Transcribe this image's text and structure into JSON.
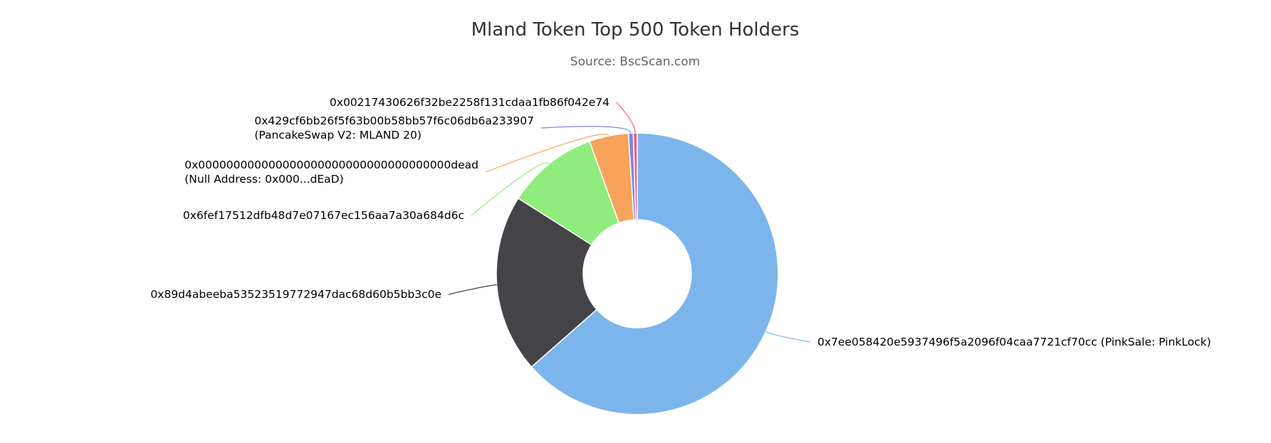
{
  "chart_data": {
    "type": "pie",
    "variant": "donut",
    "title": "Mland Token Top 500 Token Holders",
    "subtitle": "Source: BscScan.com",
    "legend": "none",
    "slices": [
      {
        "label": [
          "0x7ee058420e5937496f5a2096f04caa7721cf70cc (PinkSale: PinkLock)"
        ],
        "value": 63.5,
        "color": "#7cb5ec"
      },
      {
        "label": [
          "0x89d4abeeba53523519772947dac68d60b5bb3c0e"
        ],
        "value": 20.5,
        "color": "#434348"
      },
      {
        "label": [
          "0x6fef17512dfb48d7e07167ec156aa7a30a684d6c"
        ],
        "value": 10.5,
        "color": "#90ed7d"
      },
      {
        "label": [
          "0x000000000000000000000000000000000000dead",
          "(Null Address: 0x000...dEaD)"
        ],
        "value": 4.5,
        "color": "#f7a35c"
      },
      {
        "label": [
          "0x429cf6bb26f5f63b00b58bb57f6c06db6a233907",
          "(PancakeSwap V2: MLAND 20)"
        ],
        "value": 0.55,
        "color": "#8085e9"
      },
      {
        "label": [
          "0x00217430626f32be2258f131cdaa1fb86f042e74"
        ],
        "value": 0.45,
        "color": "#f15c80"
      }
    ]
  }
}
